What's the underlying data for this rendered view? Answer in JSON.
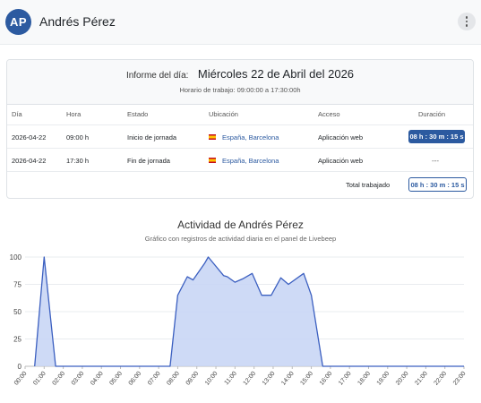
{
  "header": {
    "avatar_initials": "AP",
    "user_name": "Andrés Pérez",
    "menu_icon": "kebab-menu-icon"
  },
  "report": {
    "label": "Informe del día:",
    "date": "Miércoles 22 de Abril del 2026",
    "schedule": "Horario de trabajo: 09:00:00 a 17:30:00h",
    "columns": [
      "Día",
      "Hora",
      "Estado",
      "Ubicación",
      "Acceso",
      "Duración"
    ],
    "rows": [
      {
        "dia": "2026-04-22",
        "hora": "09:00 h",
        "estado": "Inicio de jornada",
        "ubicacion": "España, Barcelona",
        "acceso": "Aplicación web",
        "duracion": "08 h : 30 m : 15 s"
      },
      {
        "dia": "2026-04-22",
        "hora": "17:30 h",
        "estado": "Fin de jornada",
        "ubicacion": "España, Barcelona",
        "acceso": "Aplicación web",
        "duracion": "---"
      }
    ],
    "total_label": "Total trabajado",
    "total_value": "08 h : 30 m : 15 s"
  },
  "chart_data": {
    "type": "area",
    "title": "Actividad de Andrés Pérez",
    "subtitle": "Gráfico con registros de actividad diaria en el panel de Livebeep",
    "x": [
      "00:00",
      "01:00",
      "02:00",
      "03:00",
      "04:00",
      "05:00",
      "06:00",
      "07:00",
      "08:00",
      "09:00",
      "10:00",
      "11:00",
      "12:00",
      "13:00",
      "14:00",
      "15:00",
      "16:00",
      "17:00",
      "18:00",
      "19:00",
      "20:00",
      "21:00",
      "22:00",
      "23:00"
    ],
    "points": [
      [
        0.5,
        0
      ],
      [
        1.0,
        100
      ],
      [
        1.6,
        0
      ],
      [
        7.6,
        0
      ],
      [
        8.0,
        65
      ],
      [
        8.5,
        82
      ],
      [
        8.8,
        79
      ],
      [
        9.4,
        94
      ],
      [
        9.6,
        100
      ],
      [
        10.4,
        83
      ],
      [
        10.6,
        82
      ],
      [
        11.0,
        77
      ],
      [
        11.4,
        80
      ],
      [
        11.9,
        85
      ],
      [
        12.4,
        65
      ],
      [
        12.9,
        65
      ],
      [
        13.4,
        81
      ],
      [
        13.8,
        75
      ],
      [
        14.6,
        85
      ],
      [
        15.0,
        65
      ],
      [
        15.6,
        0
      ],
      [
        23.0,
        0
      ]
    ],
    "ylim": [
      0,
      100
    ],
    "yticks": [
      0,
      25,
      50,
      75,
      100
    ],
    "grid": true,
    "color": "#3b5fc0",
    "fill": "#c9d6f5"
  }
}
